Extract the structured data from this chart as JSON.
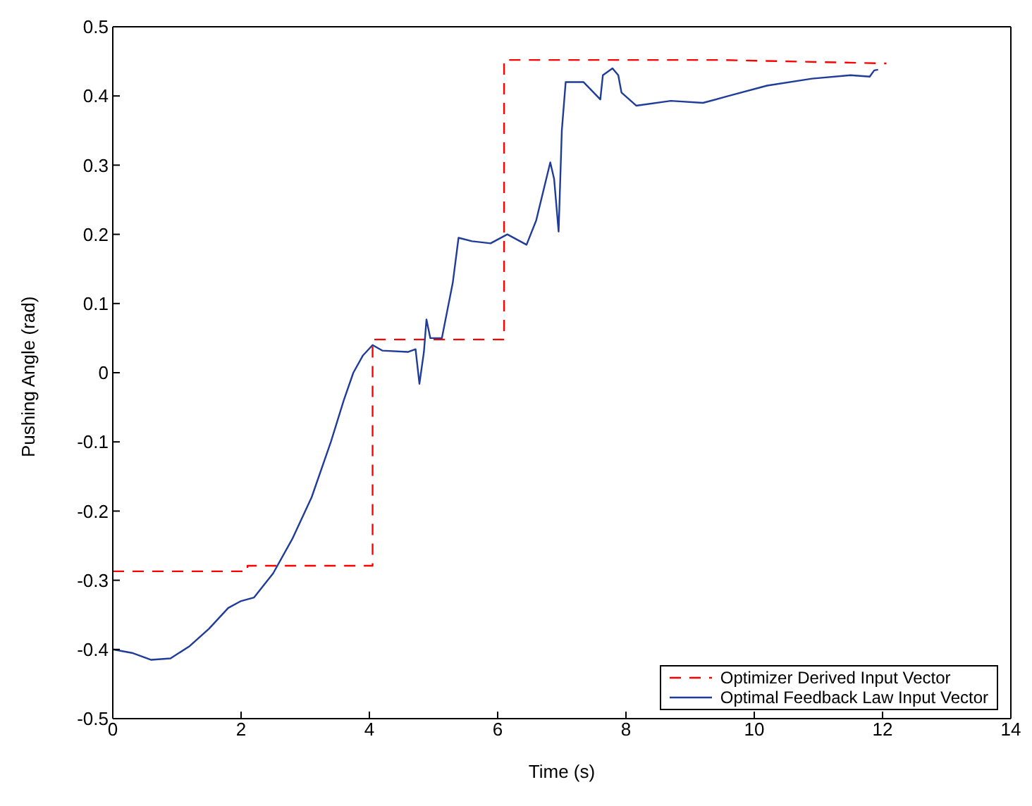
{
  "chart_data": {
    "type": "line",
    "xlabel": "Time (s)",
    "ylabel": "Pushing Angle (rad)",
    "xlim": [
      0,
      14
    ],
    "xticks": [
      0,
      2,
      4,
      6,
      8,
      10,
      12,
      14
    ],
    "ylim": [
      -0.5,
      0.5
    ],
    "yticks": [
      -0.5,
      -0.4,
      -0.3,
      -0.2,
      -0.1,
      0,
      0.1,
      0.2,
      0.3,
      0.4,
      0.5
    ],
    "grid": false,
    "legend": "bottom right",
    "marker": "none",
    "series": [
      {
        "name": "Optimizer Derived Input Vector",
        "color": "#ff0000",
        "line_style": "dashed",
        "x": [
          0,
          2.1,
          2.1,
          4.05,
          4.05,
          6.1,
          6.1,
          9.5,
          12.06
        ],
        "values": [
          -0.287,
          -0.287,
          -0.279,
          -0.279,
          0.048,
          0.048,
          0.452,
          0.452,
          0.447
        ]
      },
      {
        "name": "Optimal Feedback Law Input Vector",
        "color": "#1f3c99",
        "line_style": "solid",
        "x": [
          0,
          0.3,
          0.6,
          0.9,
          1.2,
          1.5,
          1.8,
          2.0,
          2.2,
          2.5,
          2.8,
          3.1,
          3.4,
          3.6,
          3.75,
          3.9,
          4.05,
          4.2,
          4.6,
          4.72,
          4.78,
          4.85,
          4.89,
          4.95,
          5.13,
          5.3,
          5.39,
          5.6,
          5.89,
          6.15,
          6.45,
          6.6,
          6.82,
          6.88,
          6.95,
          7.0,
          7.06,
          7.34,
          7.6,
          7.64,
          7.79,
          7.88,
          7.93,
          8.16,
          8.7,
          9.2,
          9.6,
          10.2,
          10.9,
          11.5,
          11.8,
          11.87,
          11.93
        ],
        "values": [
          -0.4,
          -0.405,
          -0.415,
          -0.413,
          -0.395,
          -0.37,
          -0.34,
          -0.33,
          -0.325,
          -0.29,
          -0.24,
          -0.18,
          -0.1,
          -0.04,
          0.0,
          0.025,
          0.04,
          0.032,
          0.03,
          0.034,
          -0.016,
          0.03,
          0.077,
          0.05,
          0.05,
          0.13,
          0.195,
          0.19,
          0.187,
          0.2,
          0.185,
          0.22,
          0.304,
          0.28,
          0.204,
          0.35,
          0.42,
          0.42,
          0.395,
          0.43,
          0.44,
          0.43,
          0.405,
          0.386,
          0.393,
          0.39,
          0.4,
          0.415,
          0.425,
          0.43,
          0.428,
          0.437,
          0.438
        ]
      }
    ]
  }
}
